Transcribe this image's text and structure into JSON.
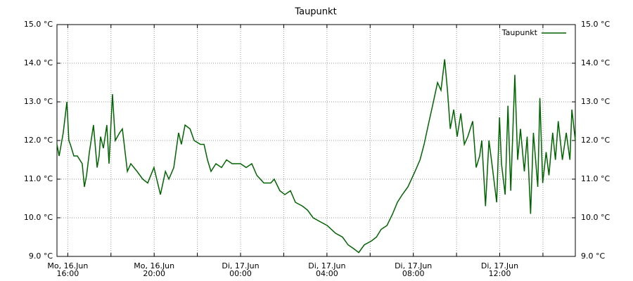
{
  "chart_data": {
    "type": "line",
    "title": "Taupunkt",
    "series": [
      {
        "name": "Taupunkt",
        "color": "#006400",
        "x": [
          15.5,
          15.6,
          15.79,
          15.96,
          16.05,
          16.12,
          16.28,
          16.44,
          16.67,
          16.77,
          16.87,
          17.0,
          17.19,
          17.36,
          17.45,
          17.52,
          17.65,
          17.81,
          17.91,
          18.07,
          18.2,
          18.4,
          18.53,
          18.76,
          18.92,
          19.21,
          19.47,
          19.7,
          19.99,
          20.29,
          20.52,
          20.68,
          20.91,
          21.13,
          21.26,
          21.43,
          21.66,
          21.85,
          22.14,
          22.31,
          22.47,
          22.63,
          22.86,
          23.12,
          23.35,
          23.61,
          24.0,
          24.26,
          24.52,
          24.75,
          25.08,
          25.4,
          25.56,
          25.82,
          26.05,
          26.31,
          26.54,
          26.87,
          27.1,
          27.36,
          27.68,
          28.01,
          28.4,
          28.72,
          28.98,
          29.24,
          29.47,
          29.73,
          30.06,
          30.29,
          30.51,
          30.78,
          31.04,
          31.26,
          31.49,
          31.75,
          32.08,
          32.31,
          32.5,
          32.73,
          32.89,
          33.12,
          33.28,
          33.45,
          33.58,
          33.71,
          33.87,
          34.03,
          34.2,
          34.36,
          34.52,
          34.75,
          34.91,
          35.07,
          35.17,
          35.34,
          35.5,
          35.66,
          35.86,
          35.99,
          36.08,
          36.25,
          36.38,
          36.51,
          36.7,
          36.83,
          36.96,
          37.14,
          37.27,
          37.43,
          37.56,
          37.76,
          37.86,
          37.99,
          38.15,
          38.28,
          38.45,
          38.58,
          38.71,
          38.9,
          39.08,
          39.25,
          39.34,
          39.5
        ],
        "values": [
          11.9,
          11.6,
          12.2,
          13.0,
          12.0,
          11.9,
          11.6,
          11.6,
          11.4,
          10.8,
          11.1,
          11.7,
          12.4,
          11.3,
          11.6,
          12.1,
          11.8,
          12.4,
          11.4,
          13.2,
          12.0,
          12.2,
          12.3,
          11.2,
          11.4,
          11.2,
          11.0,
          10.9,
          11.3,
          10.6,
          11.2,
          11.0,
          11.3,
          12.2,
          11.9,
          12.4,
          12.3,
          12.0,
          11.9,
          11.9,
          11.5,
          11.2,
          11.4,
          11.3,
          11.5,
          11.4,
          11.4,
          11.3,
          11.4,
          11.1,
          10.9,
          10.9,
          11.0,
          10.7,
          10.6,
          10.7,
          10.4,
          10.3,
          10.2,
          10.0,
          9.9,
          9.8,
          9.6,
          9.5,
          9.3,
          9.2,
          9.1,
          9.3,
          9.4,
          9.5,
          9.7,
          9.8,
          10.1,
          10.4,
          10.6,
          10.8,
          11.2,
          11.5,
          11.9,
          12.5,
          12.9,
          13.5,
          13.3,
          14.1,
          13.3,
          12.3,
          12.8,
          12.1,
          12.7,
          11.9,
          12.1,
          12.5,
          11.3,
          11.6,
          12.0,
          10.3,
          12.0,
          11.3,
          10.4,
          12.6,
          11.4,
          10.6,
          12.9,
          10.7,
          13.7,
          11.5,
          12.3,
          11.2,
          12.1,
          10.1,
          12.2,
          10.8,
          13.1,
          10.9,
          11.7,
          11.1,
          12.2,
          11.5,
          12.5,
          11.5,
          12.2,
          11.5,
          12.8,
          12.0
        ]
      }
    ],
    "xlim": [
      15.5,
      39.5
    ],
    "xticks": [
      {
        "value": 16,
        "label": [
          "Mo, 16.Jun",
          "16:00"
        ]
      },
      {
        "value": 18,
        "label": null
      },
      {
        "value": 20,
        "label": [
          "Mo, 16.Jun",
          "20:00"
        ]
      },
      {
        "value": 22,
        "label": null
      },
      {
        "value": 24,
        "label": [
          "Di, 17.Jun",
          "00:00"
        ]
      },
      {
        "value": 26,
        "label": null
      },
      {
        "value": 28,
        "label": [
          "Di, 17.Jun",
          "04:00"
        ]
      },
      {
        "value": 30,
        "label": null
      },
      {
        "value": 32,
        "label": [
          "Di, 17.Jun",
          "08:00"
        ]
      },
      {
        "value": 34,
        "label": null
      },
      {
        "value": 36,
        "label": [
          "Di, 17.Jun",
          "12:00"
        ]
      },
      {
        "value": 38,
        "label": null
      }
    ],
    "ylim": [
      9,
      15
    ],
    "yticks": [
      {
        "value": 9,
        "label": "9.0 °C"
      },
      {
        "value": 10,
        "label": "10.0 °C"
      },
      {
        "value": 11,
        "label": "11.0 °C"
      },
      {
        "value": 12,
        "label": "12.0 °C"
      },
      {
        "value": 13,
        "label": "13.0 °C"
      },
      {
        "value": 14,
        "label": "14.0 °C"
      },
      {
        "value": 15,
        "label": "15.0 °C"
      }
    ],
    "grid": true,
    "legend": "top-right"
  }
}
